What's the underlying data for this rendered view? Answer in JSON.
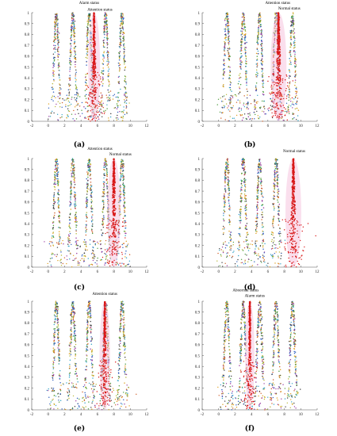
{
  "chart_data": [
    {
      "panel": "(a)",
      "type": "scatter",
      "xlim": [
        -2,
        12
      ],
      "ylim": [
        0,
        1
      ],
      "xticks": [
        -2,
        0,
        2,
        4,
        6,
        8,
        10,
        12
      ],
      "yticks": [
        0,
        0.1,
        0.2,
        0.3,
        0.4,
        0.5,
        0.6,
        0.7,
        0.8,
        0.9,
        1
      ],
      "normal_peaks": [
        1,
        3,
        5,
        7,
        9
      ],
      "highlight_peaks": [
        {
          "center": 5.6,
          "width": 0.45
        }
      ],
      "annotations": [
        {
          "text": "Alarm status",
          "x": 5.0,
          "y": 1.08
        },
        {
          "text": "Attention status",
          "x": 6.3,
          "y": 1.02
        }
      ]
    },
    {
      "panel": "(b)",
      "type": "scatter",
      "xlim": [
        -2,
        12
      ],
      "ylim": [
        0,
        1
      ],
      "xticks": [
        -2,
        0,
        2,
        4,
        6,
        8,
        10,
        12
      ],
      "yticks": [
        0,
        0.1,
        0.2,
        0.3,
        0.4,
        0.5,
        0.6,
        0.7,
        0.8,
        0.9,
        1
      ],
      "normal_peaks": [
        1,
        3,
        5,
        7,
        9
      ],
      "highlight_peaks": [
        {
          "center": 7.3,
          "width": 0.6
        }
      ],
      "annotations": [
        {
          "text": "Attention status",
          "x": 7.2,
          "y": 1.08
        },
        {
          "text": "Normal status",
          "x": 8.6,
          "y": 1.03
        }
      ]
    },
    {
      "panel": "(c)",
      "type": "scatter",
      "xlim": [
        -2,
        12
      ],
      "ylim": [
        0,
        1
      ],
      "xticks": [
        -2,
        0,
        2,
        4,
        6,
        8,
        10,
        12
      ],
      "yticks": [
        0,
        0.1,
        0.2,
        0.3,
        0.4,
        0.5,
        0.6,
        0.7,
        0.8,
        0.9,
        1
      ],
      "normal_peaks": [
        1,
        3,
        5,
        7,
        9
      ],
      "highlight_peaks": [
        {
          "center": 8.0,
          "width": 0.5
        }
      ],
      "annotations": [
        {
          "text": "Attention status",
          "x": 6.3,
          "y": 1.08
        },
        {
          "text": "Normal status",
          "x": 8.8,
          "y": 1.03
        }
      ]
    },
    {
      "panel": "(d)",
      "type": "scatter",
      "xlim": [
        -2,
        12
      ],
      "ylim": [
        0,
        1
      ],
      "xticks": [
        -2,
        0,
        2,
        4,
        6,
        8,
        10,
        12
      ],
      "yticks": [
        0,
        0.1,
        0.2,
        0.3,
        0.4,
        0.5,
        0.6,
        0.7,
        0.8,
        0.9,
        1
      ],
      "normal_peaks": [
        1,
        3,
        5,
        7
      ],
      "highlight_peaks": [
        {
          "center": 9.1,
          "width": 0.6
        }
      ],
      "annotations": [
        {
          "text": "Normal status",
          "x": 9.2,
          "y": 1.06
        }
      ]
    },
    {
      "panel": "(e)",
      "type": "scatter",
      "xlim": [
        -2,
        12
      ],
      "ylim": [
        0,
        1
      ],
      "xticks": [
        -2,
        0,
        2,
        4,
        6,
        8,
        10,
        12
      ],
      "yticks": [
        0,
        0.1,
        0.2,
        0.3,
        0.4,
        0.5,
        0.6,
        0.7,
        0.8,
        0.9,
        1
      ],
      "normal_peaks": [
        1,
        3,
        5,
        7,
        9
      ],
      "highlight_peaks": [
        {
          "center": 6.9,
          "width": 0.4
        }
      ],
      "annotations": [
        {
          "text": "Attention status",
          "x": 6.9,
          "y": 1.06
        }
      ]
    },
    {
      "panel": "(f)",
      "type": "scatter",
      "xlim": [
        -2,
        12
      ],
      "ylim": [
        0,
        1
      ],
      "xticks": [
        -2,
        0,
        2,
        4,
        6,
        8,
        10,
        12
      ],
      "yticks": [
        0,
        0.1,
        0.2,
        0.3,
        0.4,
        0.5,
        0.6,
        0.7,
        0.8,
        0.9,
        1
      ],
      "normal_peaks": [
        1,
        3,
        5,
        7,
        9
      ],
      "highlight_peaks": [
        {
          "center": 3.8,
          "width": 0.35
        }
      ],
      "annotations": [
        {
          "text": "Abnormal status",
          "x": 3.3,
          "y": 1.09
        },
        {
          "text": "Alarm status",
          "x": 4.4,
          "y": 1.04
        }
      ]
    }
  ],
  "colors": {
    "normal_points": [
      "#2f5fbf",
      "#4c9b3c",
      "#e0a020",
      "#9a3ca0",
      "#d0602a",
      "#3aa6c8",
      "#444444",
      "#b8b83a"
    ],
    "highlight_points": "#d81818",
    "highlight_glow": "#f5b8d8",
    "axis": "#555555"
  }
}
